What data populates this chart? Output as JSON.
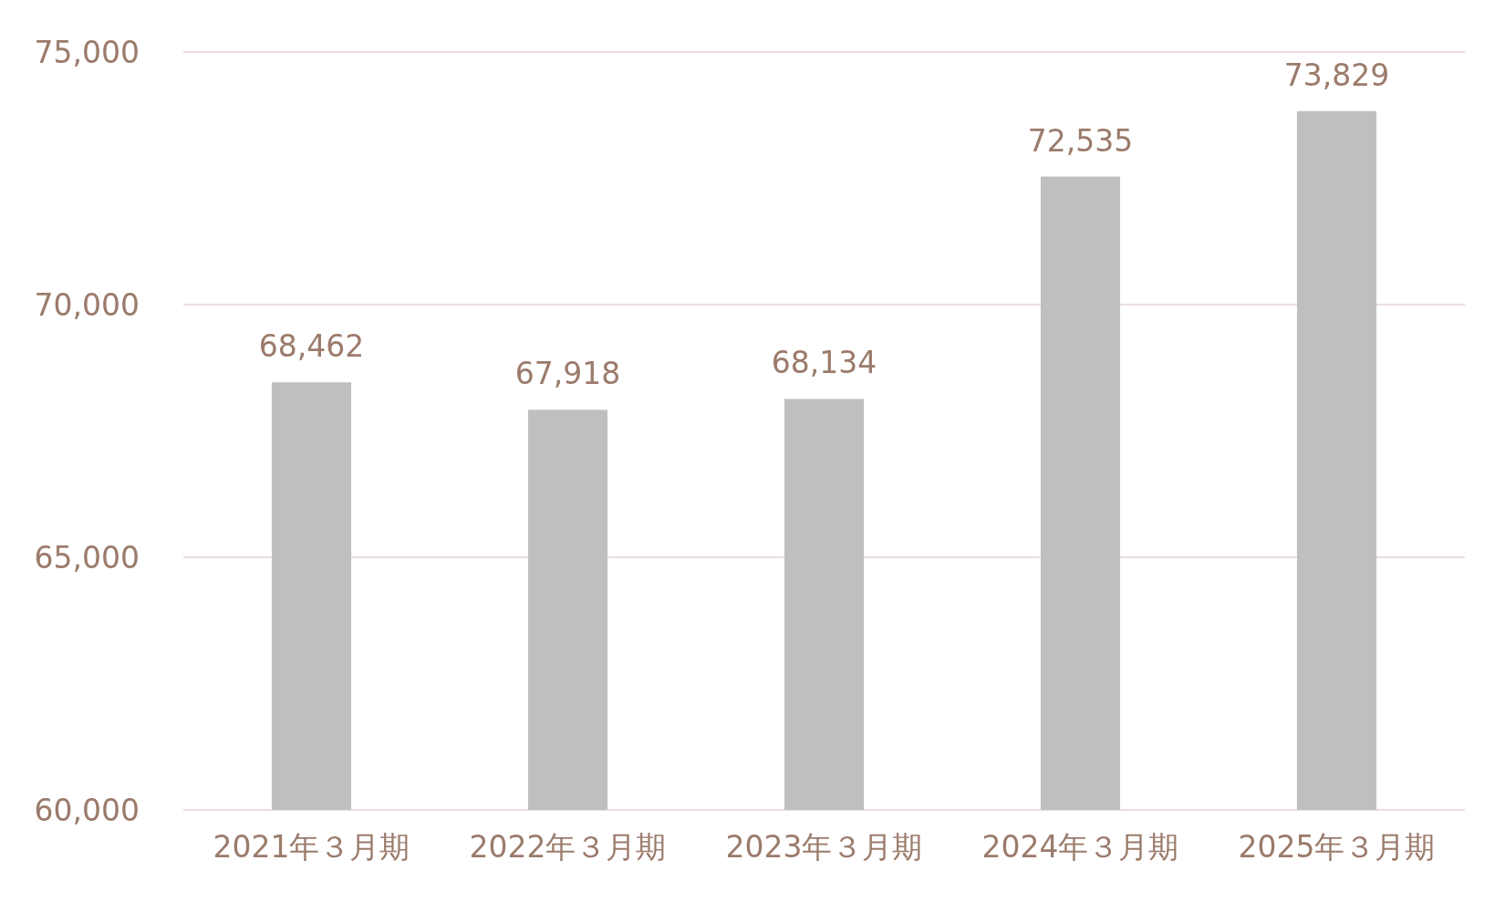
{
  "chart_data": {
    "type": "bar",
    "categories": [
      "2021年３月期",
      "2022年３月期",
      "2023年３月期",
      "2024年３月期",
      "2025年３月期"
    ],
    "values": [
      68462,
      67918,
      68134,
      72535,
      73829
    ],
    "value_labels": [
      "68,462",
      "67,918",
      "68,134",
      "72,535",
      "73,829"
    ],
    "color": "#bfbfbf",
    "ylim": [
      60000,
      75000
    ],
    "yticks": [
      {
        "value": 60000,
        "label": "60,000"
      },
      {
        "value": 65000,
        "label": "65,000"
      },
      {
        "value": 70000,
        "label": "70,000"
      },
      {
        "value": 75000,
        "label": "75,000"
      }
    ],
    "grid": "y"
  }
}
